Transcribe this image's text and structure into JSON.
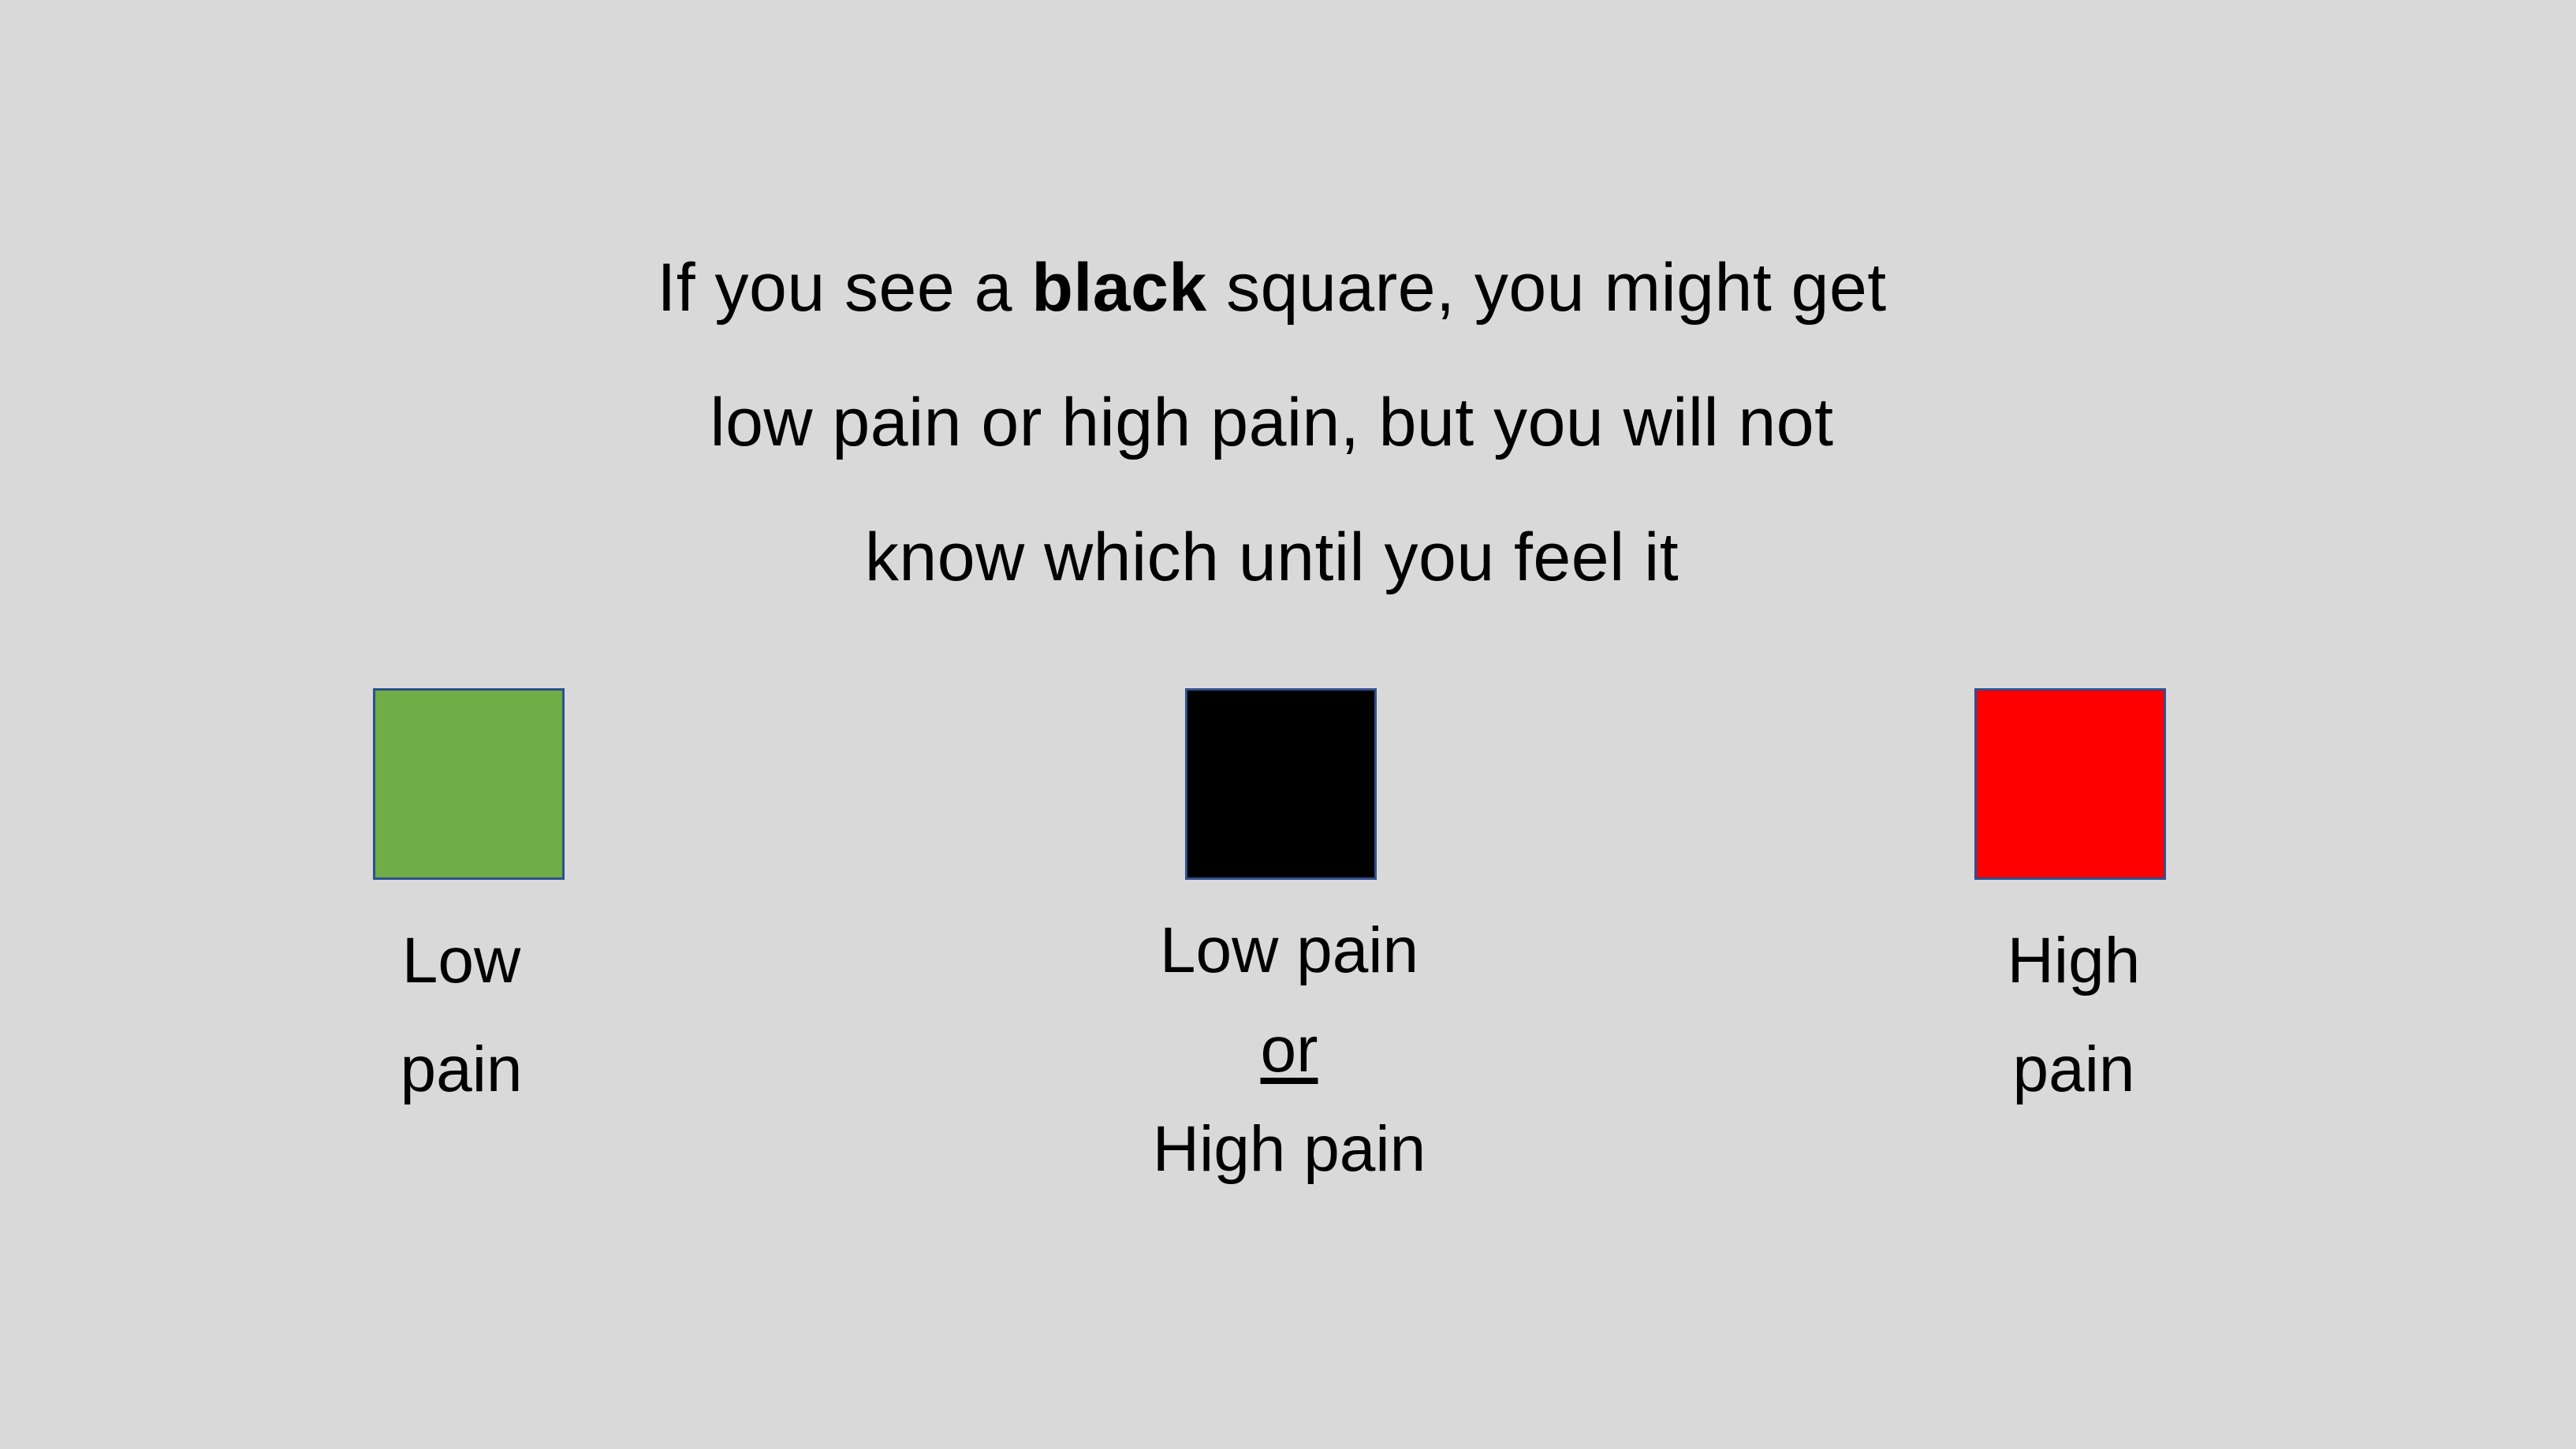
{
  "instruction": {
    "line1_before": "If you see a ",
    "line1_bold": "black",
    "line1_after": " square, you might get",
    "line2": "low pain or high pain, but you will not",
    "line3": "know which until you feel it"
  },
  "squares": [
    {
      "name": "green",
      "color": "#70ad47"
    },
    {
      "name": "black",
      "color": "#000000"
    },
    {
      "name": "red",
      "color": "#ff0000"
    }
  ],
  "labels": {
    "low": [
      "Low",
      "pain"
    ],
    "mixed": [
      "Low pain",
      "or",
      "High pain"
    ],
    "high": [
      "High",
      "pain"
    ]
  }
}
